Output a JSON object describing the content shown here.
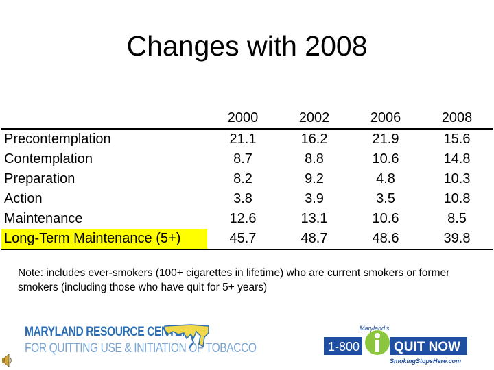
{
  "title": "Changes with 2008",
  "table": {
    "columns": [
      "2000",
      "2002",
      "2006",
      "2008"
    ],
    "rows": [
      {
        "label": "Precontemplation",
        "values": [
          "21.1",
          "16.2",
          "21.9",
          "15.6"
        ]
      },
      {
        "label": "Contemplation",
        "values": [
          "8.7",
          "8.8",
          "10.6",
          "14.8"
        ]
      },
      {
        "label": "Preparation",
        "values": [
          "8.2",
          "9.2",
          "4.8",
          "10.3"
        ]
      },
      {
        "label": "Action",
        "values": [
          "3.8",
          "3.9",
          "3.5",
          "10.8"
        ]
      },
      {
        "label": "Maintenance",
        "values": [
          "12.6",
          "13.1",
          "10.6",
          "8.5"
        ]
      },
      {
        "label": "Long-Term Maintenance (5+)",
        "values": [
          "45.7",
          "48.7",
          "48.6",
          "39.8"
        ]
      }
    ]
  },
  "note": "Note: includes ever-smokers (100+ cigarettes in lifetime) who are current smokers or former smokers (including those who have quit for 5+ years)",
  "logos": {
    "mrc_line1": "MARYLAND RESOURCE CENTER",
    "mrc_line2": "FOR QUITTING USE & INITIATION OF TOBACCO",
    "quit_top": "Maryland's",
    "quit_number": "1-800",
    "quit_main": "QUIT NOW",
    "quit_site": "SmokingStopsHere.com"
  },
  "colors": {
    "highlight": "#ffff00",
    "mrc_blue": "#2a6db5",
    "quit_blue": "#1f4fa3",
    "quit_green": "#8cc63f"
  },
  "icons": [
    "speaker-icon",
    "maryland-map-icon",
    "quitline-person-icon"
  ]
}
